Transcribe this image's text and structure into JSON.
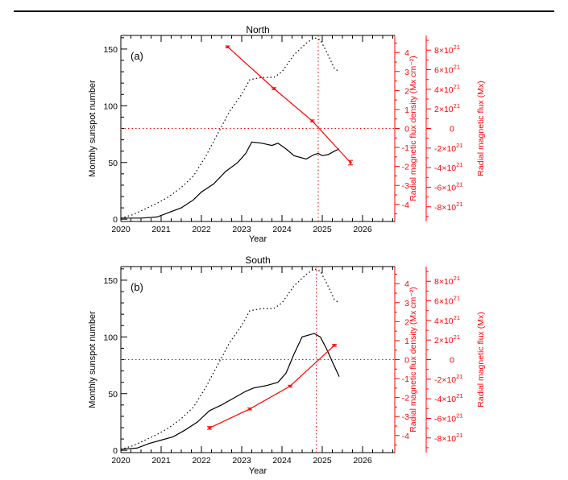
{
  "chart_data": [
    {
      "type": "line",
      "panel_label": "(a)",
      "title": "North",
      "xlabel": "Year",
      "ylabel": "Monthly sunspot number",
      "y2label": "Radial magnetic flux density (Mx cm⁻²)",
      "y3label": "Radial magnetic flux (Mx)",
      "xlim": [
        2020,
        2026.8
      ],
      "ylim": [
        -2,
        162
      ],
      "y2lim": [
        -4.9,
        4.9
      ],
      "y3lim": [
        -9.5e+21,
        9.5e+21
      ],
      "xticks": [
        "2020",
        "2021",
        "2022",
        "2023",
        "2024",
        "2025",
        "2026"
      ],
      "yticks": [
        "0",
        "50",
        "100",
        "150"
      ],
      "y2ticks": [
        "-4",
        "-3",
        "-2",
        "-1",
        "0",
        "1",
        "2",
        "3",
        "4"
      ],
      "y3ticks": [
        {
          "m": "-8",
          "e": "21"
        },
        {
          "m": "-6",
          "e": "21"
        },
        {
          "m": "-4",
          "e": "21"
        },
        {
          "m": "-2",
          "e": "21"
        },
        {
          "m": "0",
          "e": ""
        },
        {
          "m": "2",
          "e": "21"
        },
        {
          "m": "4",
          "e": "21"
        },
        {
          "m": "6",
          "e": "21"
        },
        {
          "m": "8",
          "e": "21"
        }
      ],
      "series": [
        {
          "style": "dotted",
          "color": "#000000",
          "x": [
            2020.0,
            2020.3,
            2020.6,
            2020.9,
            2021.2,
            2021.5,
            2021.8,
            2022.1,
            2022.4,
            2022.7,
            2023.0,
            2023.2,
            2023.5,
            2023.8,
            2024.0,
            2024.3,
            2024.6,
            2024.8,
            2024.95,
            2025.1,
            2025.3,
            2025.42
          ],
          "y": [
            1,
            4,
            9,
            14,
            20,
            28,
            38,
            55,
            75,
            95,
            110,
            123,
            125,
            125,
            130,
            145,
            155,
            160,
            158,
            148,
            133,
            130
          ]
        },
        {
          "style": "solid",
          "color": "#000000",
          "x": [
            2020.0,
            2020.5,
            2020.9,
            2021.2,
            2021.5,
            2021.8,
            2022.0,
            2022.3,
            2022.6,
            2022.9,
            2023.1,
            2023.25,
            2023.5,
            2023.75,
            2023.9,
            2024.1,
            2024.3,
            2024.6,
            2024.8,
            2024.9,
            2025.0,
            2025.15,
            2025.3,
            2025.42
          ],
          "y": [
            1,
            1,
            2,
            6,
            10,
            17,
            24,
            31,
            42,
            50,
            58,
            68,
            67,
            65,
            67,
            62,
            56,
            53,
            57,
            58,
            56,
            57,
            60,
            62
          ]
        },
        {
          "style": "solid-markers",
          "color": "#ff0000",
          "axis": "right",
          "x": [
            2022.65,
            2023.8,
            2024.75,
            2025.7
          ],
          "y": [
            4.3,
            2.1,
            0.4,
            -1.8
          ],
          "err": [
            0.05,
            0.05,
            0.05,
            0.12
          ]
        }
      ],
      "reference_lines": [
        {
          "axis": "right",
          "orientation": "horizontal",
          "value": 0,
          "color": "#ff0000",
          "style": "dotted"
        },
        {
          "orientation": "vertical",
          "value": 2024.9,
          "color": "#ff0000",
          "style": "dotted"
        }
      ]
    },
    {
      "type": "line",
      "panel_label": "(b)",
      "title": "South",
      "xlabel": "Year",
      "ylabel": "Monthly sunspot number",
      "y2label": "Radial magnetic flux density (Mx cm⁻²)",
      "y3label": "Radial magnetic flux (Mx)",
      "xlim": [
        2020,
        2026.8
      ],
      "ylim": [
        -2,
        162
      ],
      "y2lim": [
        -4.9,
        4.9
      ],
      "y3lim": [
        -9.5e+21,
        9.5e+21
      ],
      "xticks": [
        "2020",
        "2021",
        "2022",
        "2023",
        "2024",
        "2025",
        "2026"
      ],
      "yticks": [
        "0",
        "50",
        "100",
        "150"
      ],
      "y2ticks": [
        "-4",
        "-3",
        "-2",
        "-1",
        "0",
        "1",
        "2",
        "3",
        "4"
      ],
      "y3ticks": [
        {
          "m": "-8",
          "e": "21"
        },
        {
          "m": "-6",
          "e": "21"
        },
        {
          "m": "-4",
          "e": "21"
        },
        {
          "m": "-2",
          "e": "21"
        },
        {
          "m": "0",
          "e": ""
        },
        {
          "m": "2",
          "e": "21"
        },
        {
          "m": "4",
          "e": "21"
        },
        {
          "m": "6",
          "e": "21"
        },
        {
          "m": "8",
          "e": "21"
        }
      ],
      "series": [
        {
          "style": "dotted",
          "color": "#000000",
          "x": [
            2020.0,
            2020.3,
            2020.6,
            2020.9,
            2021.2,
            2021.5,
            2021.8,
            2022.1,
            2022.4,
            2022.7,
            2023.0,
            2023.2,
            2023.5,
            2023.8,
            2024.0,
            2024.3,
            2024.6,
            2024.8,
            2024.95,
            2025.1,
            2025.3,
            2025.42
          ],
          "y": [
            1,
            4,
            9,
            14,
            20,
            28,
            38,
            55,
            75,
            95,
            110,
            123,
            125,
            125,
            130,
            145,
            155,
            160,
            158,
            148,
            133,
            130
          ]
        },
        {
          "style": "solid",
          "color": "#000000",
          "x": [
            2020.0,
            2020.4,
            2020.7,
            2021.0,
            2021.3,
            2021.6,
            2021.9,
            2022.2,
            2022.5,
            2022.8,
            2023.1,
            2023.3,
            2023.6,
            2023.9,
            2024.1,
            2024.3,
            2024.5,
            2024.8,
            2024.95,
            2025.1,
            2025.25,
            2025.42
          ],
          "y": [
            1,
            2,
            6,
            9,
            12,
            18,
            25,
            35,
            40,
            46,
            52,
            55,
            57,
            60,
            68,
            85,
            100,
            103,
            100,
            90,
            78,
            65
          ]
        },
        {
          "style": "solid-markers",
          "color": "#ff0000",
          "axis": "right",
          "x": [
            2022.2,
            2023.2,
            2024.2,
            2025.3
          ],
          "y": [
            -3.6,
            -2.6,
            -1.4,
            0.75
          ],
          "err": [
            0.07,
            0.05,
            0.05,
            0.05
          ]
        }
      ],
      "reference_lines": [
        {
          "axis": "right",
          "orientation": "horizontal",
          "value": 0,
          "color": "#ff0000",
          "style": "dotted"
        },
        {
          "orientation": "vertical",
          "value": 2024.85,
          "color": "#ff0000",
          "style": "dotted"
        }
      ]
    }
  ]
}
